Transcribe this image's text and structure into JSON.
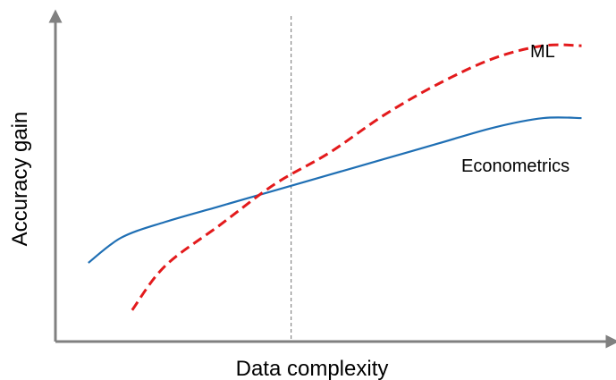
{
  "chart_data": {
    "type": "line",
    "title": "",
    "xlabel": "Data complexity",
    "ylabel": "Accuracy gain",
    "x_ticks_shown": false,
    "y_ticks_shown": false,
    "grid": false,
    "xlim": [
      0,
      10
    ],
    "ylim": [
      0,
      10
    ],
    "reference_line": {
      "x": 4.3,
      "style": "dashed",
      "color": "#888888"
    },
    "series": [
      {
        "name": "Econometrics",
        "color": "#1f6fb4",
        "style": "solid",
        "x": [
          0.6,
          1.2,
          2.0,
          3.0,
          4.0,
          5.0,
          6.0,
          7.0,
          8.0,
          8.9,
          9.6
        ],
        "y": [
          2.5,
          3.3,
          3.8,
          4.3,
          4.8,
          5.3,
          5.8,
          6.3,
          6.8,
          7.1,
          7.1
        ]
      },
      {
        "name": "ML",
        "color": "#e31a1c",
        "style": "dashed",
        "x": [
          1.4,
          2.0,
          3.0,
          4.0,
          5.0,
          6.0,
          7.0,
          8.0,
          8.9,
          9.6
        ],
        "y": [
          1.0,
          2.4,
          3.7,
          5.0,
          6.0,
          7.2,
          8.2,
          9.0,
          9.4,
          9.4
        ]
      }
    ]
  }
}
